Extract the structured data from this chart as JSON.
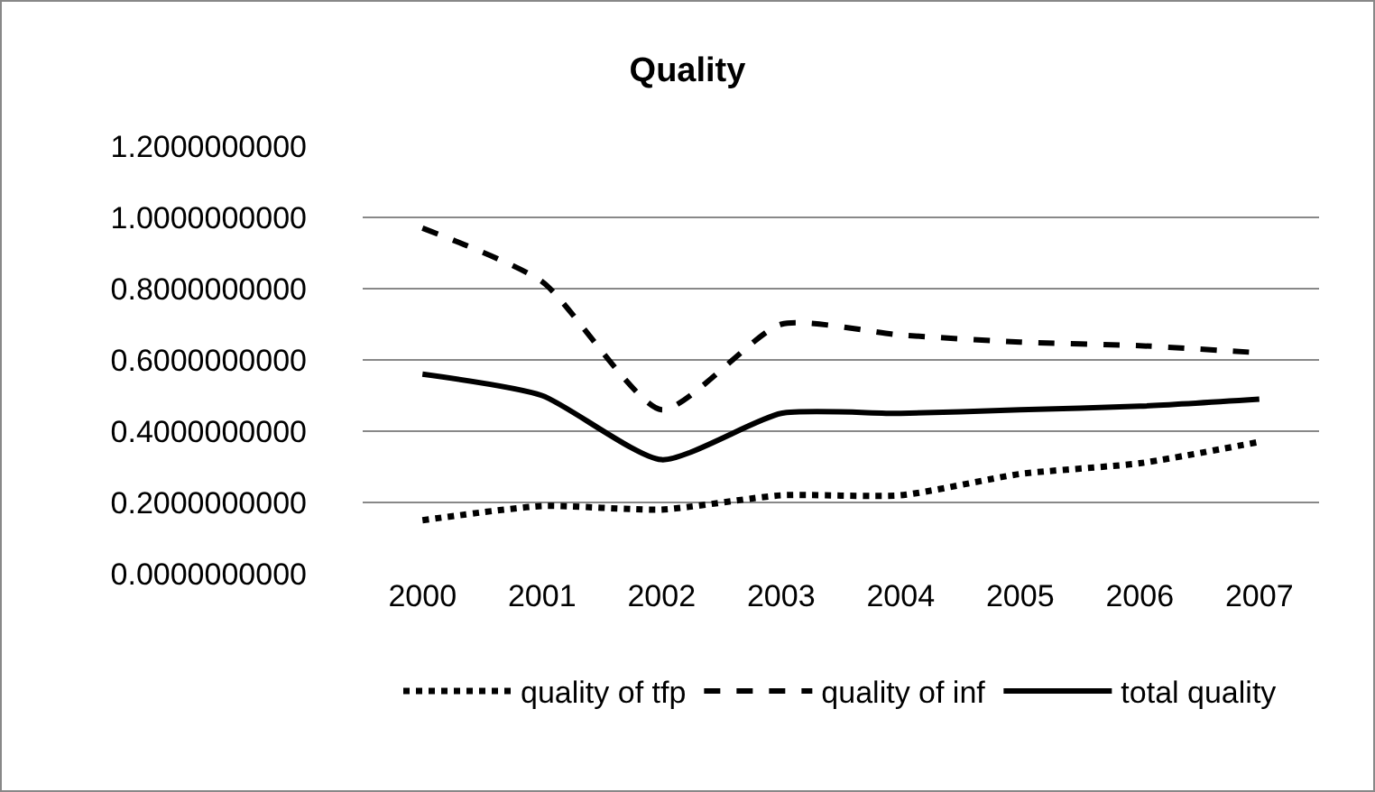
{
  "chart_data": {
    "type": "line",
    "title": "Quality",
    "categories": [
      "2000",
      "2001",
      "2002",
      "2003",
      "2004",
      "2005",
      "2006",
      "2007"
    ],
    "series": [
      {
        "name": "quality of tfp",
        "color": "#000000",
        "line_style": "dotted",
        "values": [
          0.15,
          0.19,
          0.18,
          0.22,
          0.22,
          0.28,
          0.31,
          0.37
        ]
      },
      {
        "name": "quality of inf",
        "color": "#000000",
        "line_style": "dashed",
        "values": [
          0.97,
          0.82,
          0.46,
          0.7,
          0.67,
          0.65,
          0.64,
          0.62
        ]
      },
      {
        "name": "total quality",
        "color": "#000000",
        "line_style": "solid",
        "values": [
          0.56,
          0.5,
          0.32,
          0.45,
          0.45,
          0.46,
          0.47,
          0.49
        ]
      }
    ],
    "ylim": [
      0,
      1.2
    ],
    "yticks": [
      {
        "value": 0,
        "label": "0.0000000000"
      },
      {
        "value": 0.2,
        "label": "0.2000000000"
      },
      {
        "value": 0.4,
        "label": "0.4000000000"
      },
      {
        "value": 0.6,
        "label": "0.6000000000"
      },
      {
        "value": 0.8,
        "label": "0.8000000000"
      },
      {
        "value": 1,
        "label": "1.0000000000"
      },
      {
        "value": 1.2,
        "label": "1.2000000000"
      }
    ],
    "grid": "y",
    "legend": "bottom",
    "marker": "none"
  }
}
